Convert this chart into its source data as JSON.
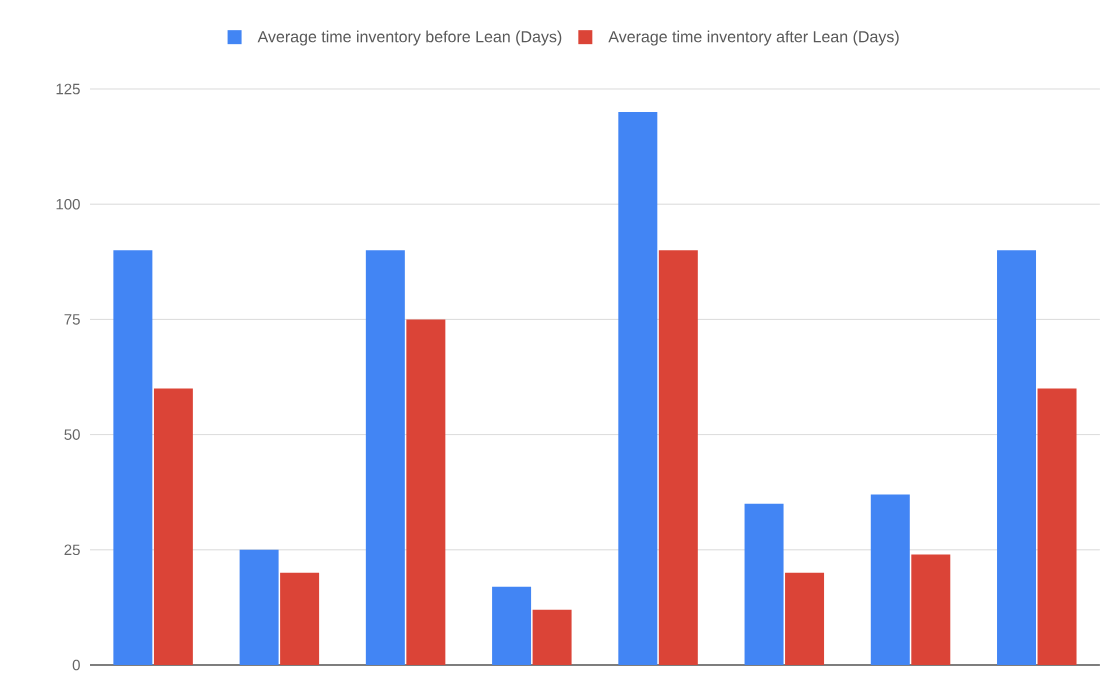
{
  "chart_data": {
    "type": "bar",
    "categories": [
      null,
      null,
      null,
      null,
      null,
      null,
      null,
      null
    ],
    "series": [
      {
        "name": "Average time inventory before Lean (Days)",
        "color": "#4285f4",
        "values": [
          90,
          25,
          90,
          17,
          120,
          35,
          37,
          90
        ]
      },
      {
        "name": "Average time inventory after Lean (Days)",
        "color": "#db4437",
        "values": [
          60,
          20,
          75,
          12,
          90,
          20,
          24,
          60
        ]
      }
    ],
    "ylim": [
      0,
      125
    ],
    "yticks": [
      0,
      25,
      50,
      75,
      100,
      125
    ],
    "grid": "y",
    "legend": "top",
    "tick_labels": "y"
  }
}
